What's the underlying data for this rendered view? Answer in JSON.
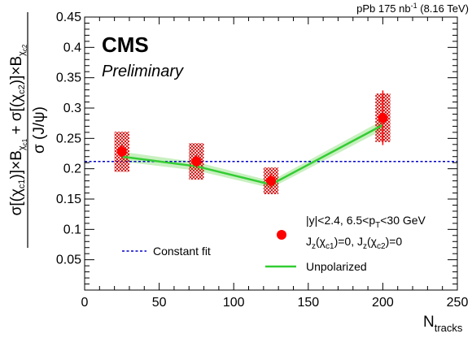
{
  "header": {
    "lumi_pre": "pPb 175 nb",
    "lumi_sup": "-1",
    "lumi_post": " (8.16 TeV)",
    "experiment": "CMS",
    "status": "Preliminary"
  },
  "chart_data": {
    "type": "scatter",
    "xlabel_main": "N",
    "xlabel_sub": "tracks",
    "ylabel": "σ[(χc1)]×Bχc1 + σ[(χc2)]×Bχc2 / σ(J/ψ)",
    "xlim": [
      0,
      250
    ],
    "ylim": [
      0,
      0.45
    ],
    "xticks": [
      0,
      50,
      100,
      150,
      200,
      250
    ],
    "yticks": [
      0.05,
      0.1,
      0.15,
      0.2,
      0.25,
      0.3,
      0.35,
      0.4,
      0.45
    ],
    "grid": false,
    "series": [
      {
        "name": "|y|<2.4, 6.5<pT<30 GeV; Jz(χc1)=0, Jz(χc2)=0",
        "kind": "points",
        "color": "#ff0000",
        "x": [
          25,
          75,
          125,
          200
        ],
        "y": [
          0.228,
          0.212,
          0.18,
          0.284
        ],
        "stat_err": [
          0.012,
          0.01,
          0.012,
          0.045
        ],
        "syst_err": [
          0.033,
          0.03,
          0.022,
          0.04
        ],
        "syst_halfwidth_x": 5
      },
      {
        "name": "Constant fit",
        "kind": "hline",
        "color": "#0000cc",
        "y": 0.212
      },
      {
        "name": "Unpolarized",
        "kind": "line",
        "color": "#33cc33",
        "band_color": "#c8f0c0",
        "x": [
          25,
          75,
          125,
          200
        ],
        "y": [
          0.22,
          0.204,
          0.174,
          0.272
        ],
        "band": [
          0.008,
          0.007,
          0.006,
          0.008
        ]
      }
    ],
    "legend": {
      "placement": "bottom-right",
      "entries": [
        {
          "line1_main": "|y|<2.4, 6.5<p",
          "line1_sub": "T",
          "line1_post": "<30 GeV",
          "line2": "J(χ)=0, J(χ)=0"
        },
        {
          "label": "Constant fit"
        },
        {
          "label": "Unpolarized"
        }
      ]
    }
  }
}
